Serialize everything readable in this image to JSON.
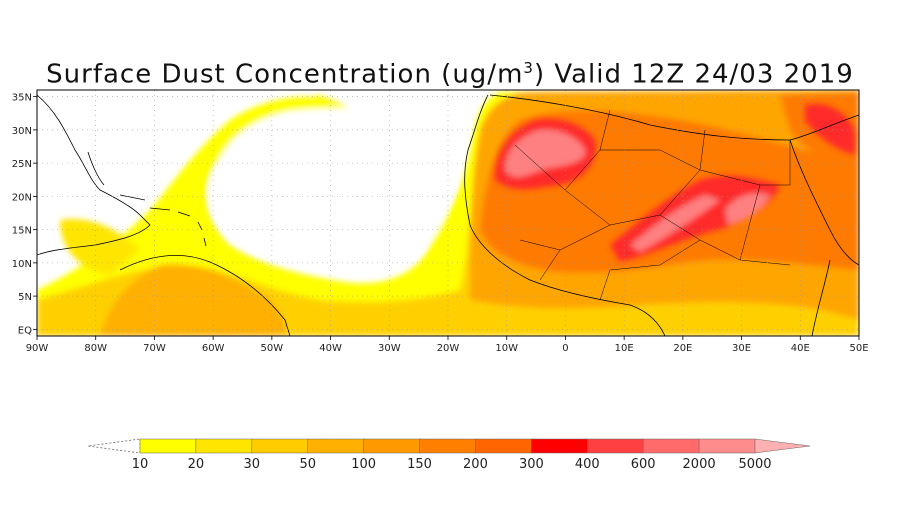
{
  "title_prefix": "Surface Dust Concentration (ug/m",
  "title_sup": "3",
  "title_suffix": ") Valid 12Z 24/03 2019",
  "map": {
    "lon_range": [
      -90,
      50
    ],
    "lat_range": [
      -1,
      36
    ],
    "lon_ticks": [
      "90W",
      "80W",
      "70W",
      "60W",
      "50W",
      "40W",
      "30W",
      "20W",
      "10W",
      "0",
      "10E",
      "20E",
      "30E",
      "40E",
      "50E"
    ],
    "lon_values": [
      -90,
      -80,
      -70,
      -60,
      -50,
      -40,
      -30,
      -20,
      -10,
      0,
      10,
      20,
      30,
      40,
      50
    ],
    "lat_ticks": [
      "35N",
      "30N",
      "25N",
      "20N",
      "15N",
      "10N",
      "5N",
      "EQ"
    ],
    "lat_values": [
      35,
      30,
      25,
      20,
      15,
      10,
      5,
      0
    ],
    "grid": "dotted"
  },
  "legend": {
    "labels": [
      "10",
      "20",
      "30",
      "50",
      "100",
      "150",
      "200",
      "300",
      "400",
      "600",
      "2000",
      "5000"
    ],
    "colors": [
      "#ffff00",
      "#ffe600",
      "#ffcc00",
      "#ffb000",
      "#ff9900",
      "#ff7f00",
      "#ff6600",
      "#ff0000",
      "#ff4040",
      "#ff6a6a",
      "#ff8c8c",
      "#ffa8a8"
    ],
    "under_color": "#ffffff",
    "over_color": "#ffb0b0"
  },
  "colors": {
    "land_outline": "#000000",
    "background": "#ffffff"
  }
}
